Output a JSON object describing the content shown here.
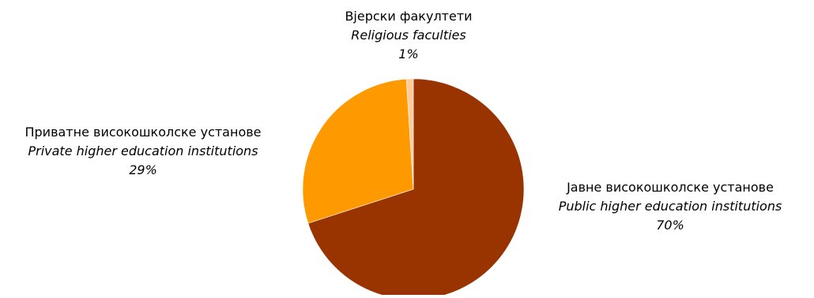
{
  "chart_data": {
    "type": "pie",
    "title": "",
    "slices": [
      {
        "label_local": "Јавне високошколске установе",
        "label_en": "Public higher education institutions",
        "value": 70,
        "value_label": "70%",
        "color": "#993300"
      },
      {
        "label_local": "Приватне високошколске установе",
        "label_en": "Private higher education institutions",
        "value": 29,
        "value_label": "29%",
        "color": "#FF9900"
      },
      {
        "label_local": "Вјерски факултети",
        "label_en": "Religious faculties",
        "value": 1,
        "value_label": "1%",
        "color": "#FFCC99"
      }
    ],
    "start_angle_deg": 0,
    "direction": "clockwise",
    "legend": "none",
    "label_placement": "outside"
  }
}
